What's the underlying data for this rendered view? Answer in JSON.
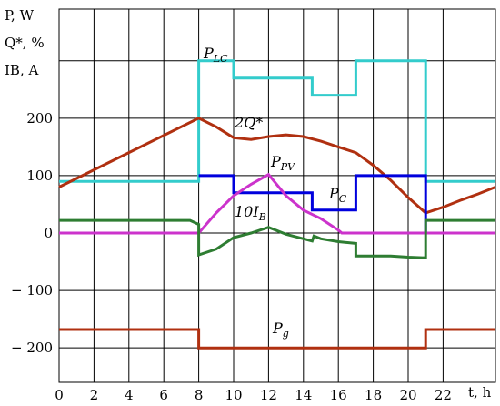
{
  "chart_data": {
    "type": "line",
    "ylabel_lines": [
      "P, W",
      "Q*, %",
      "IB, A"
    ],
    "xlabel": "t, h",
    "xlim": [
      0,
      25
    ],
    "ylim": [
      -260,
      390
    ],
    "x_ticks": [
      0,
      2,
      4,
      6,
      8,
      10,
      12,
      14,
      16,
      18,
      20,
      22
    ],
    "y_ticks": [
      -200,
      -100,
      0,
      100,
      200
    ],
    "y_tick_labels": [
      "− 200",
      "− 100",
      "0",
      "100",
      "200"
    ],
    "grid": true,
    "series": [
      {
        "name": "P_LC",
        "label_main": "P",
        "label_sub": "LC",
        "color": "#33cccc",
        "x": [
          0,
          8,
          8,
          10,
          10,
          14.5,
          14.5,
          17,
          17,
          21,
          21,
          25
        ],
        "y": [
          90,
          90,
          300,
          300,
          270,
          270,
          240,
          240,
          300,
          300,
          90,
          90
        ]
      },
      {
        "name": "2Q*",
        "label_main": "2Q*",
        "label_sub": "",
        "color": "#b03010",
        "x": [
          0,
          8,
          9,
          10,
          11,
          12,
          13,
          14,
          15,
          16,
          17,
          18,
          19,
          20,
          21,
          22,
          23,
          24,
          25
        ],
        "y": [
          80,
          200,
          185,
          166,
          163,
          168,
          171,
          168,
          160,
          150,
          140,
          118,
          92,
          62,
          35,
          45,
          57,
          68,
          80
        ]
      },
      {
        "name": "P_C",
        "label_main": "P",
        "label_sub": "C",
        "color": "#0000dd",
        "x": [
          8,
          10,
          10,
          14.5,
          14.5,
          17,
          17,
          21,
          21
        ],
        "y": [
          100,
          100,
          70,
          70,
          40,
          40,
          100,
          100,
          0
        ]
      },
      {
        "name": "P_PV",
        "label_main": "P",
        "label_sub": "PV",
        "color": "#cc33cc",
        "x": [
          0,
          8,
          9,
          10,
          11,
          12,
          13,
          14,
          15,
          16,
          16.2,
          25
        ],
        "y": [
          0,
          0,
          35,
          65,
          85,
          102,
          65,
          40,
          25,
          5,
          0,
          0
        ]
      },
      {
        "name": "10I_B",
        "label_main": "10I",
        "label_sub": "B",
        "color": "#2e7d32",
        "x": [
          0,
          7.5,
          8,
          8,
          9,
          10,
          11,
          12,
          13,
          14,
          14.5,
          14.6,
          15,
          16,
          17,
          17,
          18,
          19,
          20,
          20.8,
          21,
          21,
          25
        ],
        "y": [
          22,
          22,
          15,
          -38,
          -28,
          -8,
          0,
          10,
          -2,
          -10,
          -14,
          -5,
          -10,
          -15,
          -18,
          -40,
          -40,
          -40,
          -42,
          -43,
          -43,
          22,
          22
        ]
      },
      {
        "name": "P_g",
        "label_main": "P",
        "label_sub": "g",
        "color": "#b03010",
        "x": [
          0,
          8,
          8,
          21,
          21,
          25
        ],
        "y": [
          -168,
          -168,
          -200,
          -200,
          -168,
          -168
        ]
      }
    ]
  }
}
